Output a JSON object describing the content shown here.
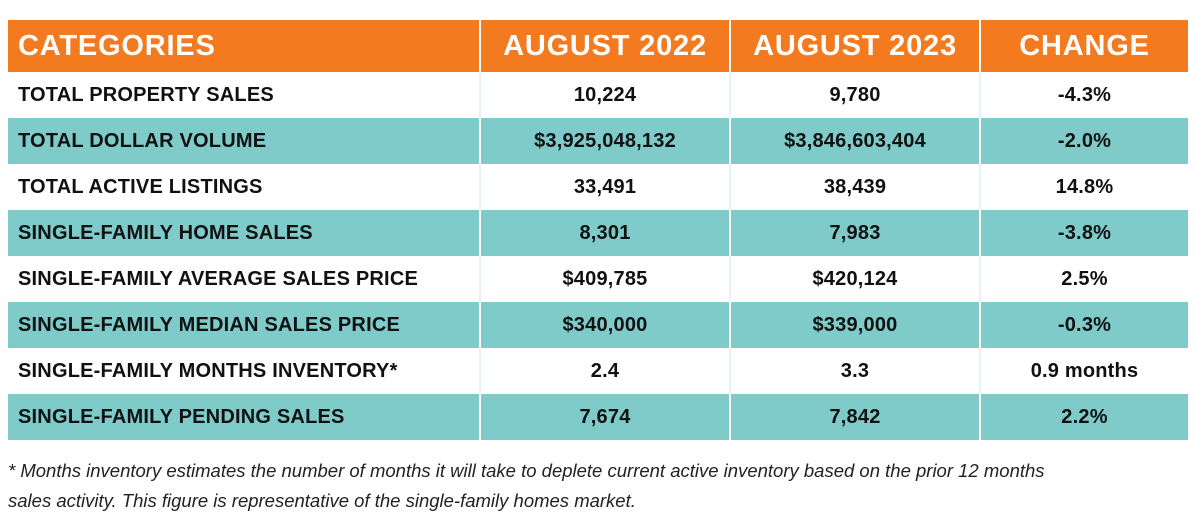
{
  "chart_data": {
    "type": "table",
    "columns": [
      "CATEGORIES",
      "AUGUST 2022",
      "AUGUST 2023",
      "CHANGE"
    ],
    "rows": [
      [
        "TOTAL PROPERTY SALES",
        "10,224",
        "9,780",
        "-4.3%"
      ],
      [
        "TOTAL DOLLAR VOLUME",
        "$3,925,048,132",
        "$3,846,603,404",
        "-2.0%"
      ],
      [
        "TOTAL ACTIVE LISTINGS",
        "33,491",
        "38,439",
        "14.8%"
      ],
      [
        "SINGLE-FAMILY HOME SALES",
        "8,301",
        "7,983",
        "-3.8%"
      ],
      [
        "SINGLE-FAMILY AVERAGE SALES PRICE",
        "$409,785",
        "$420,124",
        "2.5%"
      ],
      [
        "SINGLE-FAMILY MEDIAN SALES PRICE",
        "$340,000",
        "$339,000",
        "-0.3%"
      ],
      [
        "SINGLE-FAMILY MONTHS INVENTORY*",
        "2.4",
        "3.3",
        "0.9 months"
      ],
      [
        "SINGLE-FAMILY PENDING SALES",
        "7,674",
        "7,842",
        "2.2%"
      ]
    ]
  },
  "colors": {
    "header_bg": "#f47a20",
    "alt_row_bg": "#7ecbca",
    "header_text": "#ffffff"
  },
  "footnote": {
    "line1": "* Months inventory estimates the number of months it will take to deplete current active inventory based on the prior 12 months",
    "line2": "sales activity. This figure is representative of the single-family homes market."
  }
}
